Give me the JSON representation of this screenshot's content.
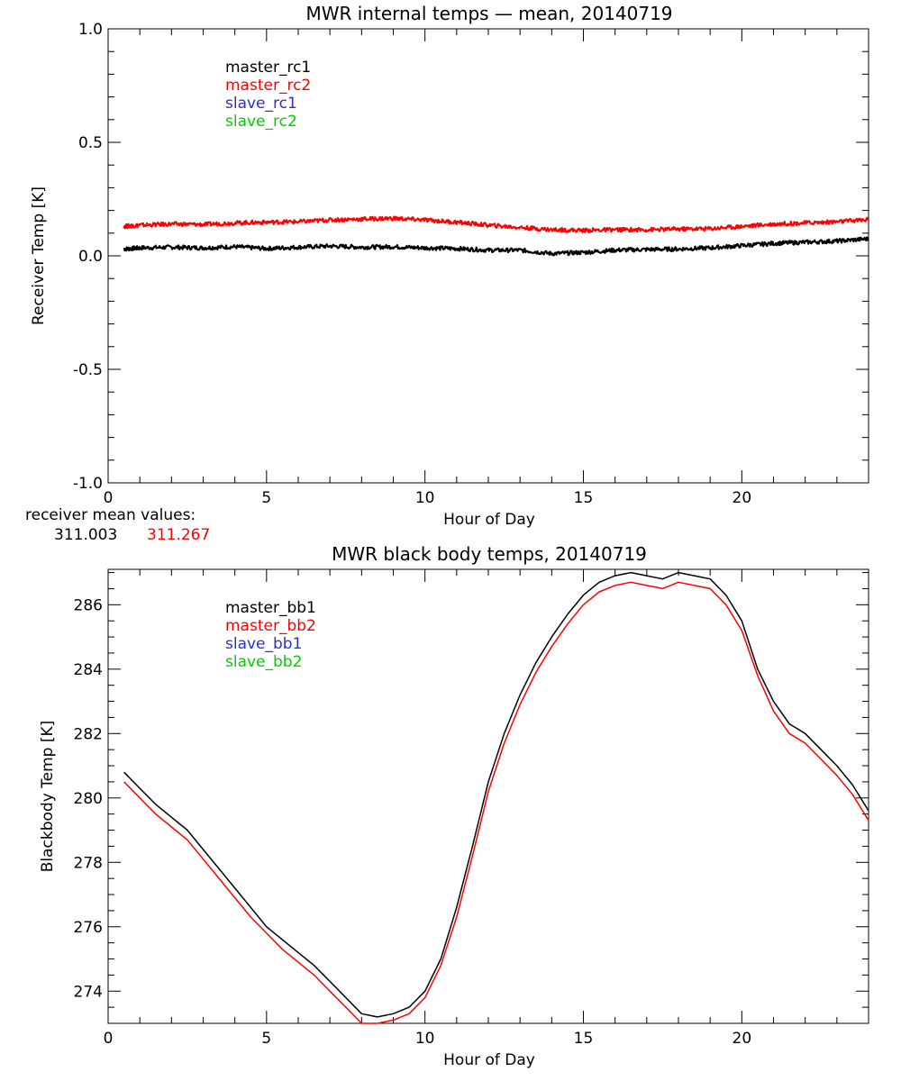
{
  "colors": {
    "black": "#000000",
    "red": "#ff0000",
    "blue": "#3030d0",
    "green": "#00d000"
  },
  "chart_data": [
    {
      "type": "line",
      "title": "MWR internal temps — mean, 20140719",
      "xlabel": "Hour of Day",
      "ylabel": "Receiver Temp [K]",
      "xlim": [
        0,
        24
      ],
      "ylim": [
        -1.0,
        1.0
      ],
      "xticks": [
        "0",
        "5",
        "10",
        "15",
        "20"
      ],
      "yticks": [
        "1.0",
        "0.5",
        "0.0",
        "-0.5",
        "-1.0"
      ],
      "grid": false,
      "legend_position": "top-left",
      "legend": [
        "master_rc1",
        "master_rc2",
        "slave_rc1",
        "slave_rc2"
      ],
      "series": [
        {
          "name": "master_rc1",
          "color": "#000000",
          "x": [
            0.5,
            1,
            2,
            3,
            4,
            5,
            6,
            7,
            8,
            9,
            10,
            11,
            12,
            13,
            14,
            15,
            16,
            17,
            18,
            19,
            20,
            21,
            22,
            23,
            24
          ],
          "y": [
            0.03,
            0.035,
            0.038,
            0.035,
            0.04,
            0.032,
            0.038,
            0.043,
            0.038,
            0.04,
            0.035,
            0.032,
            0.025,
            0.025,
            0.01,
            0.015,
            0.025,
            0.028,
            0.03,
            0.035,
            0.045,
            0.055,
            0.06,
            0.065,
            0.075
          ]
        },
        {
          "name": "master_rc2",
          "color": "#ff0000",
          "x": [
            0.5,
            1,
            2,
            3,
            4,
            5,
            6,
            7,
            8,
            9,
            10,
            11,
            12,
            13,
            14,
            15,
            16,
            17,
            18,
            19,
            20,
            21,
            22,
            23,
            24
          ],
          "y": [
            0.13,
            0.135,
            0.14,
            0.138,
            0.145,
            0.148,
            0.15,
            0.158,
            0.162,
            0.165,
            0.158,
            0.148,
            0.135,
            0.125,
            0.115,
            0.112,
            0.115,
            0.115,
            0.118,
            0.12,
            0.13,
            0.14,
            0.145,
            0.15,
            0.16
          ]
        }
      ]
    },
    {
      "type": "line",
      "title": "MWR black body temps, 20140719",
      "xlabel": "Hour of Day",
      "ylabel": "Blackbody Temp [K]",
      "xlim": [
        0,
        24
      ],
      "ylim": [
        273.0,
        287.1
      ],
      "xticks": [
        "0",
        "5",
        "10",
        "15",
        "20"
      ],
      "yticks": [
        "286",
        "284",
        "282",
        "280",
        "278",
        "276",
        "274"
      ],
      "grid": false,
      "legend_position": "top-left",
      "legend": [
        "master_bb1",
        "master_bb2",
        "slave_bb1",
        "slave_bb2"
      ],
      "series": [
        {
          "name": "master_bb1",
          "color": "#000000",
          "x": [
            0.5,
            1,
            1.5,
            2,
            2.5,
            3,
            3.5,
            4,
            4.5,
            5,
            5.5,
            6,
            6.5,
            7,
            7.5,
            8,
            8.5,
            9,
            9.5,
            10,
            10.5,
            11,
            11.5,
            12,
            12.5,
            13,
            13.5,
            14,
            14.5,
            15,
            15.5,
            16,
            16.5,
            17,
            17.5,
            18,
            18.5,
            19,
            19.5,
            20,
            20.5,
            21,
            21.5,
            22,
            22.5,
            23,
            23.5,
            24
          ],
          "y": [
            280.8,
            280.3,
            279.8,
            279.4,
            279.0,
            278.4,
            277.8,
            277.2,
            276.6,
            276.0,
            275.6,
            275.2,
            274.8,
            274.3,
            273.8,
            273.3,
            273.2,
            273.3,
            273.5,
            274.0,
            275.0,
            276.6,
            278.5,
            280.5,
            282.0,
            283.2,
            284.2,
            285.0,
            285.7,
            286.3,
            286.7,
            286.9,
            287.0,
            286.9,
            286.8,
            287.0,
            286.9,
            286.8,
            286.3,
            285.5,
            284.0,
            283.0,
            282.3,
            282.0,
            281.5,
            281.0,
            280.4,
            279.6
          ]
        },
        {
          "name": "master_bb2",
          "color": "#ff0000",
          "x": [
            0.5,
            1,
            1.5,
            2,
            2.5,
            3,
            3.5,
            4,
            4.5,
            5,
            5.5,
            6,
            6.5,
            7,
            7.5,
            8,
            8.5,
            9,
            9.5,
            10,
            10.5,
            11,
            11.5,
            12,
            12.5,
            13,
            13.5,
            14,
            14.5,
            15,
            15.5,
            16,
            16.5,
            17,
            17.5,
            18,
            18.5,
            19,
            19.5,
            20,
            20.5,
            21,
            21.5,
            22,
            22.5,
            23,
            23.5,
            24
          ],
          "y": [
            280.5,
            280.0,
            279.5,
            279.1,
            278.7,
            278.1,
            277.5,
            276.9,
            276.3,
            275.8,
            275.3,
            274.9,
            274.5,
            274.0,
            273.5,
            273.0,
            273.0,
            273.1,
            273.3,
            273.8,
            274.8,
            276.3,
            278.2,
            280.2,
            281.7,
            282.9,
            283.9,
            284.7,
            285.4,
            286.0,
            286.4,
            286.6,
            286.7,
            286.6,
            286.5,
            286.7,
            286.6,
            286.5,
            286.0,
            285.2,
            283.8,
            282.7,
            282.0,
            281.7,
            281.2,
            280.7,
            280.1,
            279.3
          ]
        }
      ]
    }
  ],
  "receiver_mean": {
    "label": "receiver mean values:",
    "value1": "311.003",
    "value2": "311.267"
  }
}
